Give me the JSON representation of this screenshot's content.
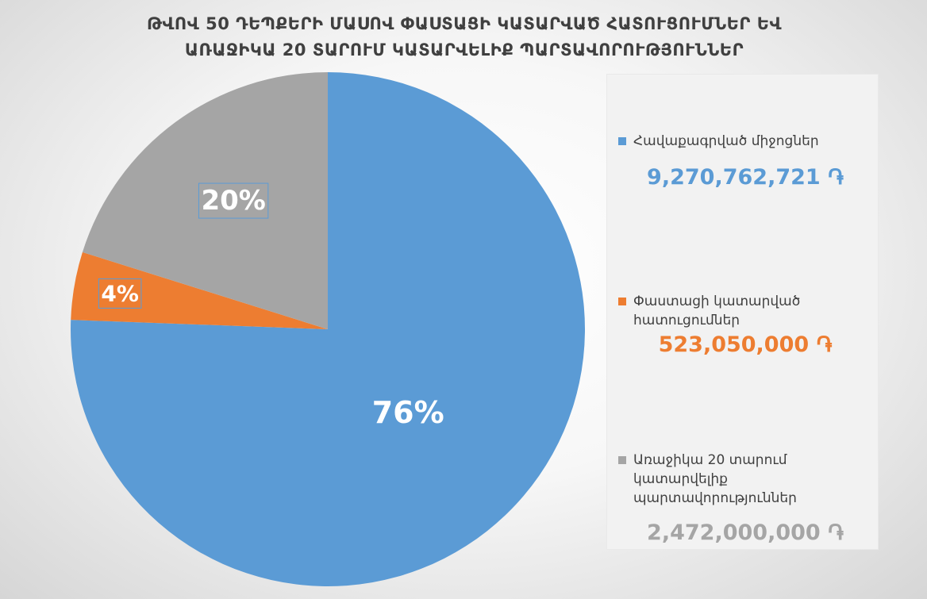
{
  "chart_data": {
    "type": "pie",
    "title": [
      "ԹՎՈՎ 50 ԴԵՊՔԵՐԻ ՄԱՍՈՎ ՓԱՍՏԱՑԻ ԿԱՏԱՐՎԱԾ  ՀԱՏՈՒՑՈՒՄՆԵՐ ԵՎ",
      "ԱՌԱՋԻԿԱ 20 ՏԱՐՈՒՄ ԿԱՏԱՐՎԵԼԻՔ ՊԱՐՏԱՎՈՐՈՒԹՅՈՒՆՆԵՐ"
    ],
    "slices": [
      {
        "label": "Հավաքագրված միջոցներ",
        "amount": 9270762721,
        "value_text": "9,270,762,721 ֏",
        "percent": 76,
        "percent_label": "76%",
        "color": "#5b9bd5"
      },
      {
        "label": "Փաստացի կատարված հատուցումներ",
        "amount": 523050000,
        "value_text": "523,050,000 ֏",
        "percent": 4,
        "percent_label": "4%",
        "color": "#ed7d31"
      },
      {
        "label": "Առաջիկա 20 տարում կատարվելիք պարտավորություններ",
        "amount": 2472000000,
        "value_text": "2,472,000,000 ֏",
        "percent": 20,
        "percent_label": "20%",
        "color": "#a5a5a5"
      }
    ],
    "legend_placement": "right"
  }
}
